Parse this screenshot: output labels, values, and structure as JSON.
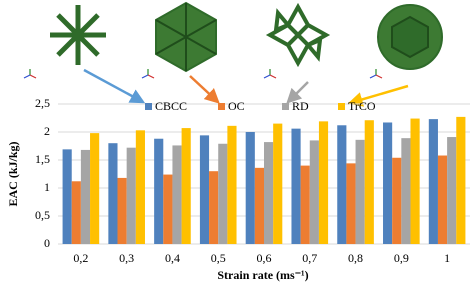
{
  "chart_data": {
    "type": "bar",
    "x_label": "Strain rate (ms⁻¹)",
    "y_label": "EAC (kJ/kg)",
    "categories": [
      "0,2",
      "0,3",
      "0,4",
      "0,5",
      "0,6",
      "0,7",
      "0,8",
      "0,9",
      "1"
    ],
    "series": [
      {
        "name": "CBCC",
        "color": "#4f81bd",
        "values": [
          1.69,
          1.8,
          1.88,
          1.94,
          2.0,
          2.06,
          2.12,
          2.17,
          2.23
        ]
      },
      {
        "name": "OC",
        "color": "#ed7d31",
        "values": [
          1.12,
          1.18,
          1.24,
          1.3,
          1.36,
          1.4,
          1.44,
          1.54,
          1.58
        ]
      },
      {
        "name": "RD",
        "color": "#a5a5a5",
        "values": [
          1.68,
          1.72,
          1.76,
          1.79,
          1.82,
          1.85,
          1.86,
          1.89,
          1.91
        ]
      },
      {
        "name": "TrCO",
        "color": "#ffc000",
        "values": [
          1.98,
          2.03,
          2.07,
          2.11,
          2.15,
          2.19,
          2.21,
          2.24,
          2.27
        ]
      }
    ],
    "ylim": [
      0,
      2.5
    ],
    "yticks": [
      0,
      {
        "value": 0.5,
        "label": "0,5"
      },
      1,
      {
        "value": 1.5,
        "label": "1,5"
      },
      2,
      {
        "value": 2.5,
        "label": "2,5"
      }
    ],
    "grid": true
  }
}
